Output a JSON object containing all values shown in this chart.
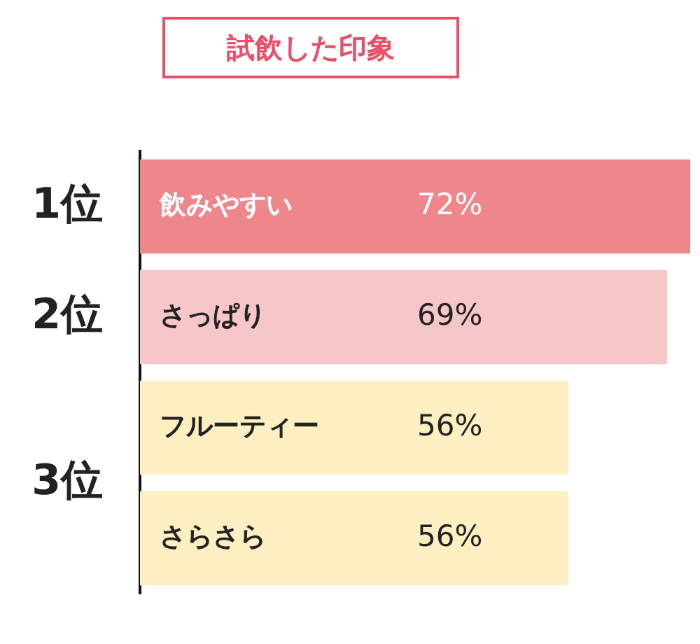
{
  "chart_data": {
    "type": "bar",
    "orientation": "horizontal",
    "title": "試飲した印象",
    "categories": [
      "飲みやすい",
      "さっぱり",
      "フルーティー",
      "さらさら"
    ],
    "values": [
      72,
      69,
      56,
      56
    ],
    "colors": [
      "#ee868c",
      "#f7c6c8",
      "#fdefc1",
      "#fdefc1"
    ],
    "value_labels": [
      "72%",
      "69%",
      "56%",
      "56%"
    ],
    "xlim": [
      0,
      72
    ],
    "annotations": [
      "1位",
      "2位",
      "3位"
    ],
    "grid": false,
    "legend": false
  }
}
